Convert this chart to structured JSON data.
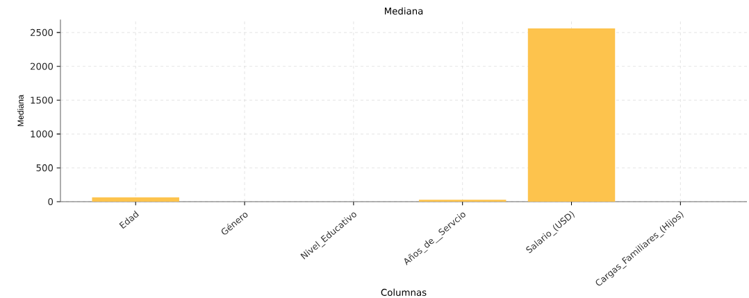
{
  "chart_data": {
    "type": "bar",
    "title": "Mediana",
    "xlabel": "Columnas",
    "ylabel": "Mediana",
    "categories": [
      "Edad",
      "Género",
      "Nivel_Educativo",
      "Años_de__Servcio",
      "Salario_(USD)",
      "Cargas_Familiares_(Hijos)"
    ],
    "values": [
      65,
      0,
      0,
      28,
      2560,
      0
    ],
    "color": "#fdc34d",
    "ylim": [
      0,
      2690
    ],
    "yticks": [
      0,
      500,
      1000,
      1500,
      2000,
      2500
    ],
    "grid": true
  }
}
